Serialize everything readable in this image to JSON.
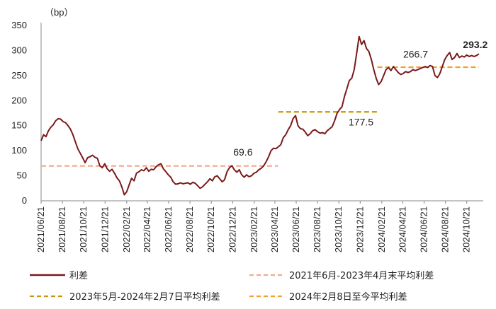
{
  "chart_data": {
    "type": "line",
    "unit_label": "（bp）",
    "yticks": [
      0,
      50,
      100,
      150,
      200,
      250,
      300,
      350
    ],
    "ylim": [
      0,
      350
    ],
    "x_start": "2021/06/21",
    "x_end": "2024/11/25",
    "xticks": [
      "2021/06/21",
      "2021/08/21",
      "2021/10/21",
      "2021/12/21",
      "2022/02/21",
      "2022/04/21",
      "2022/06/21",
      "2022/08/21",
      "2022/10/21",
      "2022/12/21",
      "2023/02/21",
      "2023/04/21",
      "2023/06/21",
      "2023/08/21",
      "2023/10/21",
      "2023/12/21",
      "2024/02/21",
      "2024/04/21",
      "2024/06/21",
      "2024/08/21",
      "2024/10/21"
    ],
    "series": [
      {
        "name": "利差",
        "color": "#7b1a1a",
        "points": [
          [
            "2021/06/21",
            120
          ],
          [
            "2021/06/28",
            132
          ],
          [
            "2021/07/05",
            128
          ],
          [
            "2021/07/12",
            140
          ],
          [
            "2021/07/19",
            147
          ],
          [
            "2021/07/26",
            152
          ],
          [
            "2021/08/02",
            160
          ],
          [
            "2021/08/09",
            164
          ],
          [
            "2021/08/16",
            163
          ],
          [
            "2021/08/23",
            158
          ],
          [
            "2021/08/30",
            156
          ],
          [
            "2021/09/06",
            150
          ],
          [
            "2021/09/13",
            143
          ],
          [
            "2021/09/20",
            132
          ],
          [
            "2021/09/27",
            118
          ],
          [
            "2021/10/04",
            104
          ],
          [
            "2021/10/11",
            95
          ],
          [
            "2021/10/18",
            86
          ],
          [
            "2021/10/25",
            76
          ],
          [
            "2021/11/01",
            86
          ],
          [
            "2021/11/08",
            88
          ],
          [
            "2021/11/15",
            91
          ],
          [
            "2021/11/22",
            87
          ],
          [
            "2021/11/29",
            85
          ],
          [
            "2021/12/06",
            70
          ],
          [
            "2021/12/13",
            66
          ],
          [
            "2021/12/20",
            74
          ],
          [
            "2021/12/27",
            64
          ],
          [
            "2022/01/03",
            59
          ],
          [
            "2022/01/10",
            63
          ],
          [
            "2022/01/17",
            55
          ],
          [
            "2022/01/24",
            46
          ],
          [
            "2022/01/31",
            40
          ],
          [
            "2022/02/07",
            28
          ],
          [
            "2022/02/14",
            12
          ],
          [
            "2022/02/21",
            18
          ],
          [
            "2022/02/28",
            32
          ],
          [
            "2022/03/07",
            45
          ],
          [
            "2022/03/14",
            40
          ],
          [
            "2022/03/21",
            55
          ],
          [
            "2022/03/28",
            58
          ],
          [
            "2022/04/04",
            62
          ],
          [
            "2022/04/11",
            60
          ],
          [
            "2022/04/18",
            66
          ],
          [
            "2022/04/25",
            59
          ],
          [
            "2022/05/02",
            63
          ],
          [
            "2022/05/09",
            62
          ],
          [
            "2022/05/16",
            68
          ],
          [
            "2022/05/23",
            72
          ],
          [
            "2022/05/30",
            74
          ],
          [
            "2022/06/06",
            64
          ],
          [
            "2022/06/13",
            58
          ],
          [
            "2022/06/20",
            52
          ],
          [
            "2022/06/27",
            47
          ],
          [
            "2022/07/04",
            38
          ],
          [
            "2022/07/11",
            33
          ],
          [
            "2022/07/18",
            34
          ],
          [
            "2022/07/25",
            36
          ],
          [
            "2022/08/01",
            34
          ],
          [
            "2022/08/08",
            35
          ],
          [
            "2022/08/15",
            36
          ],
          [
            "2022/08/22",
            33
          ],
          [
            "2022/08/29",
            37
          ],
          [
            "2022/09/05",
            35
          ],
          [
            "2022/09/12",
            30
          ],
          [
            "2022/09/19",
            25
          ],
          [
            "2022/09/26",
            28
          ],
          [
            "2022/10/03",
            33
          ],
          [
            "2022/10/10",
            38
          ],
          [
            "2022/10/17",
            44
          ],
          [
            "2022/10/24",
            40
          ],
          [
            "2022/10/31",
            48
          ],
          [
            "2022/11/07",
            50
          ],
          [
            "2022/11/14",
            44
          ],
          [
            "2022/11/21",
            38
          ],
          [
            "2022/11/28",
            42
          ],
          [
            "2022/12/05",
            58
          ],
          [
            "2022/12/12",
            66
          ],
          [
            "2022/12/19",
            70
          ],
          [
            "2022/12/26",
            62
          ],
          [
            "2023/01/02",
            57
          ],
          [
            "2023/01/09",
            62
          ],
          [
            "2023/01/16",
            52
          ],
          [
            "2023/01/23",
            47
          ],
          [
            "2023/01/30",
            52
          ],
          [
            "2023/02/06",
            48
          ],
          [
            "2023/02/13",
            50
          ],
          [
            "2023/02/20",
            55
          ],
          [
            "2023/02/27",
            57
          ],
          [
            "2023/03/06",
            62
          ],
          [
            "2023/03/13",
            65
          ],
          [
            "2023/03/20",
            70
          ],
          [
            "2023/03/27",
            78
          ],
          [
            "2023/04/03",
            88
          ],
          [
            "2023/04/10",
            100
          ],
          [
            "2023/04/17",
            105
          ],
          [
            "2023/04/24",
            104
          ],
          [
            "2023/05/01",
            108
          ],
          [
            "2023/05/08",
            112
          ],
          [
            "2023/05/15",
            126
          ],
          [
            "2023/05/22",
            132
          ],
          [
            "2023/05/29",
            142
          ],
          [
            "2023/06/05",
            150
          ],
          [
            "2023/06/12",
            164
          ],
          [
            "2023/06/19",
            170
          ],
          [
            "2023/06/26",
            150
          ],
          [
            "2023/07/03",
            144
          ],
          [
            "2023/07/10",
            143
          ],
          [
            "2023/07/17",
            137
          ],
          [
            "2023/07/24",
            130
          ],
          [
            "2023/07/31",
            134
          ],
          [
            "2023/08/07",
            140
          ],
          [
            "2023/08/14",
            142
          ],
          [
            "2023/08/21",
            138
          ],
          [
            "2023/08/28",
            135
          ],
          [
            "2023/09/04",
            136
          ],
          [
            "2023/09/11",
            134
          ],
          [
            "2023/09/18",
            140
          ],
          [
            "2023/09/25",
            144
          ],
          [
            "2023/10/02",
            148
          ],
          [
            "2023/10/09",
            160
          ],
          [
            "2023/10/16",
            175
          ],
          [
            "2023/10/23",
            182
          ],
          [
            "2023/10/30",
            188
          ],
          [
            "2023/11/06",
            208
          ],
          [
            "2023/11/13",
            224
          ],
          [
            "2023/11/20",
            240
          ],
          [
            "2023/11/27",
            245
          ],
          [
            "2023/12/04",
            262
          ],
          [
            "2023/12/11",
            295
          ],
          [
            "2023/12/18",
            328
          ],
          [
            "2023/12/25",
            312
          ],
          [
            "2024/01/01",
            320
          ],
          [
            "2024/01/08",
            304
          ],
          [
            "2024/01/15",
            298
          ],
          [
            "2024/01/22",
            282
          ],
          [
            "2024/01/29",
            262
          ],
          [
            "2024/02/05",
            244
          ],
          [
            "2024/02/12",
            232
          ],
          [
            "2024/02/19",
            238
          ],
          [
            "2024/02/26",
            250
          ],
          [
            "2024/03/04",
            262
          ],
          [
            "2024/03/11",
            266
          ],
          [
            "2024/03/18",
            260
          ],
          [
            "2024/03/25",
            268
          ],
          [
            "2024/04/01",
            262
          ],
          [
            "2024/04/08",
            256
          ],
          [
            "2024/04/15",
            252
          ],
          [
            "2024/04/22",
            254
          ],
          [
            "2024/04/29",
            258
          ],
          [
            "2024/05/06",
            256
          ],
          [
            "2024/05/13",
            258
          ],
          [
            "2024/05/20",
            262
          ],
          [
            "2024/05/27",
            260
          ],
          [
            "2024/06/03",
            262
          ],
          [
            "2024/06/10",
            264
          ],
          [
            "2024/06/17",
            266
          ],
          [
            "2024/06/24",
            268
          ],
          [
            "2024/07/01",
            266
          ],
          [
            "2024/07/08",
            270
          ],
          [
            "2024/07/15",
            268
          ],
          [
            "2024/07/22",
            250
          ],
          [
            "2024/07/29",
            246
          ],
          [
            "2024/08/05",
            254
          ],
          [
            "2024/08/12",
            268
          ],
          [
            "2024/08/19",
            282
          ],
          [
            "2024/08/26",
            290
          ],
          [
            "2024/09/02",
            296
          ],
          [
            "2024/09/09",
            282
          ],
          [
            "2024/09/16",
            286
          ],
          [
            "2024/09/23",
            294
          ],
          [
            "2024/09/30",
            286
          ],
          [
            "2024/10/07",
            289
          ],
          [
            "2024/10/14",
            287
          ],
          [
            "2024/10/21",
            291
          ],
          [
            "2024/10/28",
            288
          ],
          [
            "2024/11/04",
            290
          ],
          [
            "2024/11/11",
            288
          ],
          [
            "2024/11/18",
            290
          ],
          [
            "2024/11/25",
            293.2
          ]
        ]
      },
      {
        "name": "2021年6月-2023年4月末平均利差",
        "color": "#f2a98a",
        "style": "dashed",
        "x_range": [
          "2021/06/21",
          "2023/04/30"
        ],
        "value": 69.6
      },
      {
        "name": "2023年5月-2024年2月7日平均利差",
        "color": "#c8960a",
        "style": "dashed",
        "x_range": [
          "2023/05/01",
          "2024/02/07"
        ],
        "value": 177.5
      },
      {
        "name": "2024年2月8日至今平均利差",
        "color": "#f0a030",
        "style": "dashed",
        "x_range": [
          "2024/02/08",
          "2024/11/25"
        ],
        "value": 266.7
      }
    ],
    "annotations": [
      {
        "text": "69.6",
        "x": "2022/12/23",
        "y": 90,
        "bold": false
      },
      {
        "text": "177.5",
        "x": "2023/11/18",
        "y": 150,
        "bold": false
      },
      {
        "text": "266.7",
        "x": "2024/04/22",
        "y": 286,
        "bold": false
      },
      {
        "text": "293.2",
        "x": "2024/10/10",
        "y": 305,
        "bold": true
      }
    ],
    "legend_position": "bottom"
  }
}
